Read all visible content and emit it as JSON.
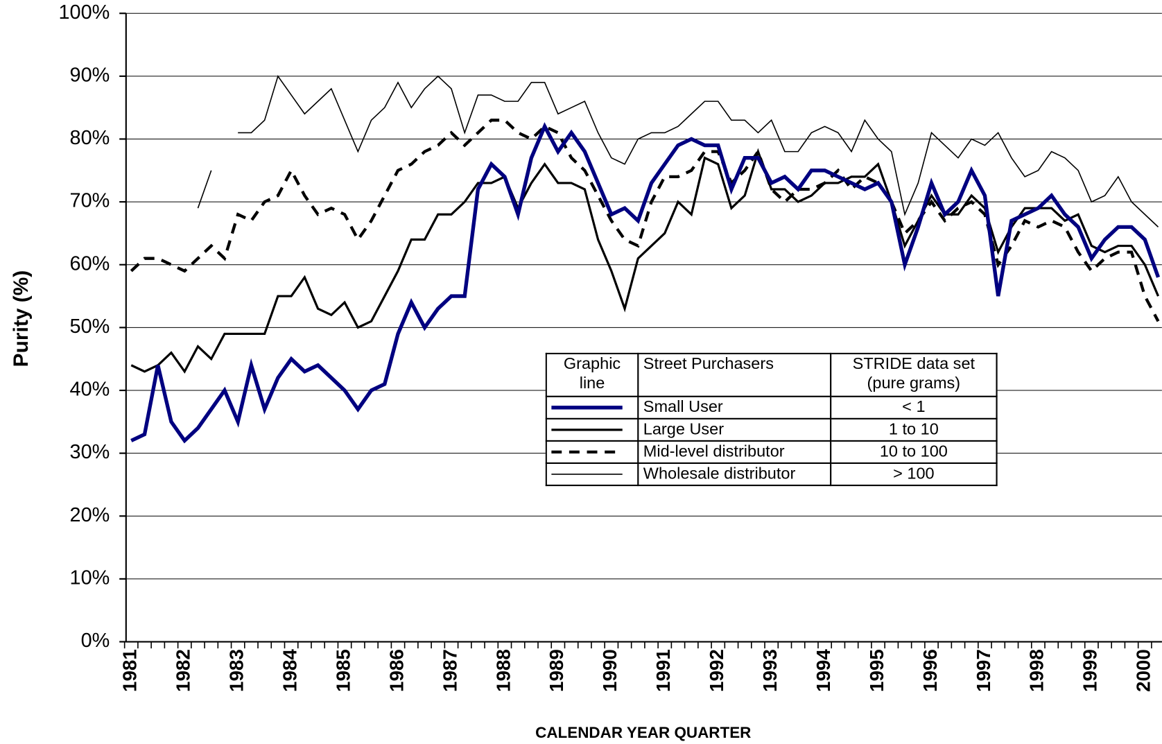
{
  "chart_data": {
    "type": "line",
    "xlabel": "CALENDAR YEAR QUARTER",
    "ylabel": "Purity (%)",
    "categories": [
      "1981",
      null,
      null,
      null,
      "1982",
      null,
      null,
      null,
      "1983",
      null,
      null,
      null,
      "1984",
      null,
      null,
      null,
      "1985",
      null,
      null,
      null,
      "1986",
      null,
      null,
      null,
      "1987",
      null,
      null,
      null,
      "1988",
      null,
      null,
      null,
      "1989",
      null,
      null,
      null,
      "1990",
      null,
      null,
      null,
      "1991",
      null,
      null,
      null,
      "1992",
      null,
      null,
      null,
      "1993",
      null,
      null,
      null,
      "1994",
      null,
      null,
      null,
      "1995",
      null,
      null,
      null,
      "1996",
      null,
      null,
      null,
      "1997",
      null,
      null,
      null,
      "1998",
      null,
      null,
      null,
      "1999",
      null,
      null,
      null,
      "2000",
      null
    ],
    "ylim": [
      0,
      100
    ],
    "yticks": [
      {
        "value": 0,
        "label": "0%"
      },
      {
        "value": 10,
        "label": "10%"
      },
      {
        "value": 20,
        "label": "20%"
      },
      {
        "value": 30,
        "label": "30%"
      },
      {
        "value": 40,
        "label": "40%"
      },
      {
        "value": 50,
        "label": "50%"
      },
      {
        "value": 60,
        "label": "60%"
      },
      {
        "value": 70,
        "label": "70%"
      },
      {
        "value": 80,
        "label": "80%"
      },
      {
        "value": 90,
        "label": "90%"
      },
      {
        "value": 100,
        "label": "100%"
      }
    ],
    "grid": true,
    "legend": {
      "headers": [
        "Graphic line",
        "Street Purchasers",
        "STRIDE data set (pure grams)"
      ],
      "ranges": [
        "< 1",
        "1 to 10",
        "10 to 100",
        "> 100"
      ]
    },
    "series": [
      {
        "name": "Small User",
        "color": "#000080",
        "width": 5,
        "dash": "none",
        "values": [
          32,
          33,
          44,
          35,
          32,
          34,
          37,
          40,
          35,
          44,
          37,
          42,
          45,
          43,
          44,
          42,
          40,
          37,
          40,
          41,
          49,
          54,
          50,
          53,
          55,
          55,
          72,
          76,
          74,
          68,
          77,
          82,
          78,
          81,
          78,
          73,
          68,
          69,
          67,
          73,
          76,
          79,
          80,
          79,
          79,
          72,
          77,
          77,
          73,
          74,
          72,
          75,
          75,
          74,
          73,
          72,
          73,
          70,
          60,
          66,
          73,
          68,
          70,
          75,
          71,
          55,
          67,
          68,
          69,
          71,
          68,
          66,
          61,
          64,
          66,
          66,
          64,
          58
        ]
      },
      {
        "name": "Large User",
        "color": "#000000",
        "width": 3,
        "dash": "none",
        "values": [
          44,
          43,
          44,
          46,
          43,
          47,
          45,
          49,
          49,
          49,
          49,
          55,
          55,
          58,
          53,
          52,
          54,
          50,
          51,
          55,
          59,
          64,
          64,
          68,
          68,
          70,
          73,
          73,
          74,
          69,
          73,
          76,
          73,
          73,
          72,
          64,
          59,
          53,
          61,
          63,
          65,
          70,
          68,
          77,
          76,
          69,
          71,
          78,
          72,
          72,
          70,
          71,
          73,
          73,
          74,
          74,
          76,
          70,
          63,
          67,
          71,
          68,
          68,
          71,
          69,
          62,
          66,
          69,
          69,
          69,
          67,
          68,
          63,
          62,
          63,
          63,
          60,
          55
        ]
      },
      {
        "name": "Mid-level distributor",
        "color": "#000000",
        "width": 4,
        "dash": "14 10",
        "values": [
          59,
          61,
          61,
          60,
          59,
          61,
          63,
          61,
          68,
          67,
          70,
          71,
          75,
          71,
          68,
          69,
          68,
          64,
          67,
          71,
          75,
          76,
          78,
          79,
          81,
          79,
          81,
          83,
          83,
          81,
          80,
          82,
          81,
          77,
          75,
          71,
          67,
          64,
          63,
          70,
          74,
          74,
          75,
          78,
          78,
          73,
          75,
          78,
          72,
          70,
          72,
          72,
          73,
          75,
          72,
          74,
          73,
          70,
          65,
          67,
          70,
          67,
          69,
          70,
          68,
          60,
          63,
          67,
          66,
          67,
          66,
          62,
          59,
          61,
          62,
          62,
          55,
          51
        ]
      },
      {
        "name": "Wholesale distributor",
        "color": "#000000",
        "width": 1.5,
        "dash": "none",
        "values": [
          null,
          null,
          null,
          null,
          null,
          69,
          75,
          null,
          81,
          81,
          83,
          90,
          87,
          84,
          86,
          88,
          83,
          78,
          83,
          85,
          89,
          85,
          88,
          90,
          88,
          81,
          87,
          87,
          86,
          86,
          89,
          89,
          84,
          85,
          86,
          81,
          77,
          76,
          80,
          81,
          81,
          82,
          84,
          86,
          86,
          83,
          83,
          81,
          83,
          78,
          78,
          81,
          82,
          81,
          78,
          83,
          80,
          78,
          68,
          73,
          81,
          79,
          77,
          80,
          79,
          81,
          77,
          74,
          75,
          78,
          77,
          75,
          70,
          71,
          74,
          70,
          68,
          66
        ]
      }
    ]
  }
}
